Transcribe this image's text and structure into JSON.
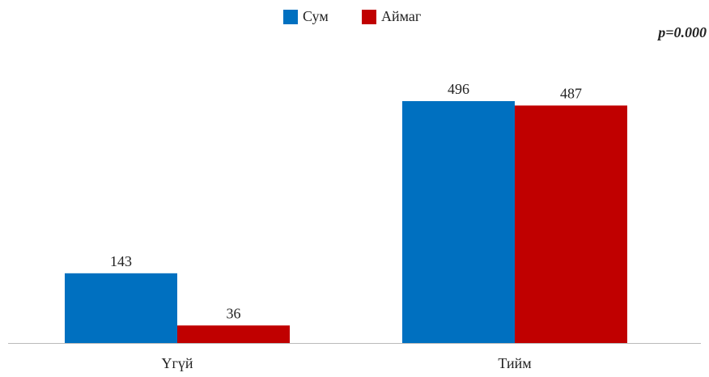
{
  "chart_data": {
    "type": "bar",
    "annotation": "p=0.000",
    "categories": [
      "Үгүй",
      "Тийм"
    ],
    "series": [
      {
        "name": "Сум",
        "color": "#0070c0",
        "values": [
          143,
          496
        ]
      },
      {
        "name": "Аймаг",
        "color": "#c00000",
        "values": [
          36,
          487
        ]
      }
    ],
    "legend": "top"
  }
}
